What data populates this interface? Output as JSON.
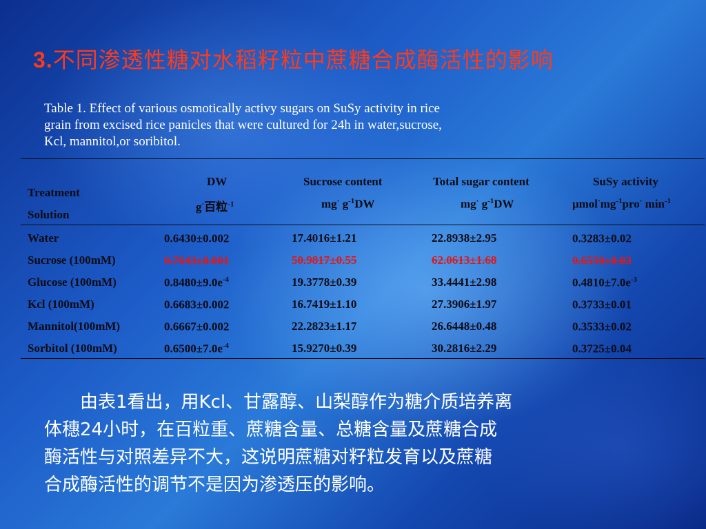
{
  "title": {
    "num": "3.",
    "text": "不同渗透性糖对水稻籽粒中蔗糖合成酶活性的影响"
  },
  "caption": [
    "Table 1. Effect of various osmotically activy sugars on SuSy activity in rice",
    "grain from excised rice panicles that were cultured for 24h in water,sucrose,",
    "Kcl, mannitol,or soribitol."
  ],
  "table": {
    "header_treatment": "Treatment",
    "header_solution": "Solution",
    "columns": [
      {
        "name": "DW",
        "unit_a": "g",
        "unit_sup1": "·",
        "unit_b": "百粒",
        "unit_sup2": "-1",
        "unit_c": ""
      },
      {
        "name": "Sucrose content",
        "unit_a": "mg",
        "unit_sup1": "·",
        "unit_b": " g",
        "unit_sup2": "-1",
        "unit_c": "DW"
      },
      {
        "name": "Total sugar content",
        "unit_a": "mg",
        "unit_sup1": "·",
        "unit_b": " g",
        "unit_sup2": "-1",
        "unit_c": "DW"
      },
      {
        "name": "SuSy activity",
        "unit_a": "μmol",
        "unit_sup1": "·",
        "unit_b": "mg",
        "unit_sup2": "-1",
        "unit_c": "pro",
        "unit_sup3": "·",
        "unit_d": " min",
        "unit_sup4": "-1"
      }
    ],
    "rows": [
      {
        "treatment": "Water",
        "dw": "0.6430±0.002",
        "dw_sup": "",
        "sucrose": "17.4016±1.21",
        "total": "22.8938±2.95",
        "susy": "0.3283±0.02",
        "susy_sup": ""
      },
      {
        "treatment": "Sucrose (100mM)",
        "dw": "0.7643±0.001",
        "dw_sup": "",
        "sucrose": "50.9817±0.55",
        "total": "62.0613±1.68",
        "susy": "0.6550±0.03",
        "susy_sup": ""
      },
      {
        "treatment": "Glucose (100mM)",
        "dw": "0.8480±9.0e",
        "dw_sup": "-4",
        "sucrose": "19.3778±0.39",
        "total": "33.4441±2.98",
        "susy": "0.4810±7.0e",
        "susy_sup": "-3"
      },
      {
        "treatment": "Kcl (100mM)",
        "dw": "0.6683±0.002",
        "dw_sup": "",
        "sucrose": "16.7419±1.10",
        "total": "27.3906±1.97",
        "susy": "0.3733±0.01",
        "susy_sup": ""
      },
      {
        "treatment": "Mannitol(100mM)",
        "dw": "0.6667±0.002",
        "dw_sup": "",
        "sucrose": "22.2823±1.17",
        "total": "26.6448±0.48",
        "susy": "0.3533±0.02",
        "susy_sup": ""
      },
      {
        "treatment": "Sorbitol (100mM)",
        "dw": "0.6500±7.0e",
        "dw_sup": "-4",
        "sucrose": "15.9270±0.39",
        "total": "30.2816±2.29",
        "susy": "0.3725±0.04",
        "susy_sup": ""
      }
    ]
  },
  "body": [
    "　　由表1看出，用Kcl、甘露醇、山梨醇作为糖介质培养离",
    "体穗24小时，在百粒重、蔗糖含量、总糖含量及蔗糖合成",
    "酶活性与对照差异不大，这说明蔗糖对籽粒发育以及蔗糖",
    "合成酶活性的调节不是因为渗透压的影响。"
  ],
  "colors": {
    "title": "#ff3a1a",
    "highlight": "#e01818",
    "text": "#ffffff",
    "table_text": "#0b0b14"
  }
}
